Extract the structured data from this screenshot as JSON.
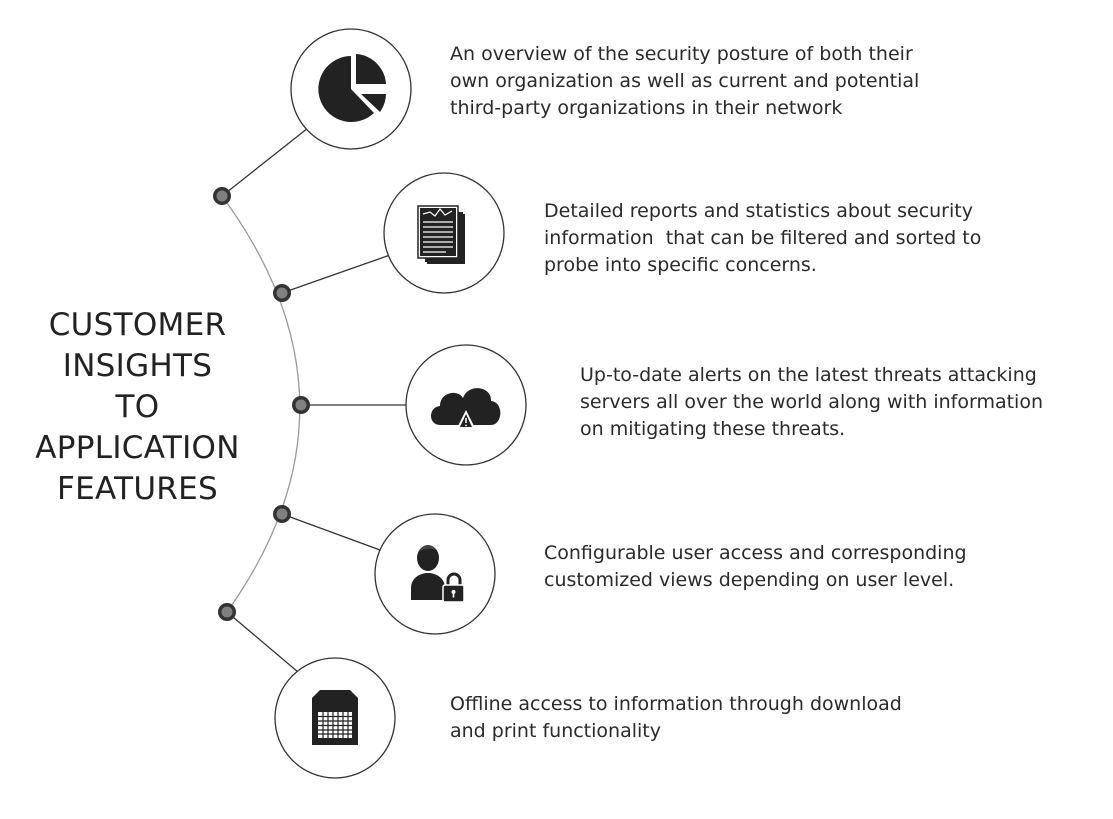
{
  "title": {
    "lines": [
      "CUSTOMER",
      "INSIGHTS",
      "TO",
      "APPLICATION",
      "FEATURES"
    ]
  },
  "features": [
    {
      "icon": "pie-chart-icon",
      "lines": [
        "An overview of the security posture of both their",
        "own organization as well as current and potential",
        "third-party organizations in their network"
      ]
    },
    {
      "icon": "report-documents-icon",
      "lines": [
        "Detailed reports and statistics about security",
        "information  that can be filtered and sorted to",
        "probe into specific concerns."
      ]
    },
    {
      "icon": "cloud-alert-icon",
      "lines": [
        "Up-to-date alerts on the latest threats attacking",
        "servers all over the world along with information",
        "on mitigating these threats."
      ]
    },
    {
      "icon": "user-lock-icon",
      "lines": [
        "Configurable user access and corresponding",
        "customized views depending on user level."
      ]
    },
    {
      "icon": "spreadsheet-file-icon",
      "lines": [
        "Offline access to information through download",
        "and print functionality"
      ]
    }
  ],
  "colors": {
    "icon": "#222222",
    "text": "#2a2a2a",
    "arc": "#9a9a9a",
    "node_fill": "#808080",
    "node_ring": "#333333"
  }
}
